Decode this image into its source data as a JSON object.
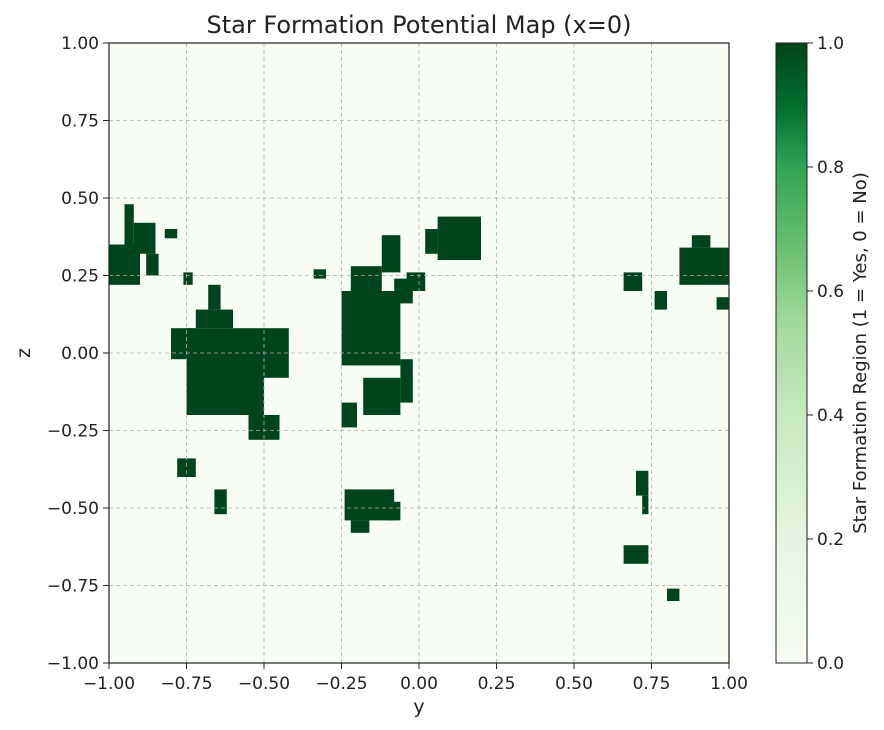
{
  "chart_data": {
    "type": "heatmap",
    "title": "Star Formation Potential Map (x=0)",
    "xlabel": "y",
    "ylabel": "z",
    "xlim": [
      -1.0,
      1.0
    ],
    "ylim": [
      -1.0,
      1.0
    ],
    "x_ticks": [
      "−1.00",
      "−0.75",
      "−0.50",
      "−0.25",
      "0.00",
      "0.25",
      "0.50",
      "0.75",
      "1.00"
    ],
    "y_ticks": [
      "1.00",
      "0.75",
      "0.50",
      "0.25",
      "0.00",
      "−0.25",
      "−0.50",
      "−0.75",
      "−1.00"
    ],
    "grid": true,
    "colorbar": {
      "label": "Star Formation Region (1 = Yes, 0 = No)",
      "ticks": [
        "1.0",
        "0.8",
        "0.6",
        "0.4",
        "0.2",
        "0.0"
      ],
      "range": [
        0.0,
        1.0
      ]
    },
    "colors": {
      "low": "#f7fcf5",
      "mid": "#74c476",
      "high": "#00441b"
    },
    "cell_size": 0.02,
    "regions_value_1": [
      [
        -1.0,
        -0.9,
        0.22,
        0.35
      ],
      [
        -0.95,
        -0.92,
        0.35,
        0.48
      ],
      [
        -0.92,
        -0.85,
        0.32,
        0.42
      ],
      [
        -0.88,
        -0.84,
        0.25,
        0.32
      ],
      [
        -0.82,
        -0.78,
        0.37,
        0.4
      ],
      [
        -0.76,
        -0.73,
        0.22,
        0.26
      ],
      [
        -0.8,
        -0.73,
        -0.02,
        0.08
      ],
      [
        -0.75,
        -0.5,
        -0.2,
        0.08
      ],
      [
        -0.72,
        -0.6,
        0.08,
        0.14
      ],
      [
        -0.68,
        -0.64,
        0.14,
        0.22
      ],
      [
        -0.5,
        -0.42,
        -0.08,
        0.08
      ],
      [
        -0.55,
        -0.45,
        -0.28,
        -0.2
      ],
      [
        -0.78,
        -0.72,
        -0.4,
        -0.34
      ],
      [
        -0.66,
        -0.62,
        -0.52,
        -0.44
      ],
      [
        -0.25,
        -0.06,
        -0.04,
        0.2
      ],
      [
        -0.22,
        -0.12,
        0.2,
        0.28
      ],
      [
        -0.12,
        -0.06,
        0.26,
        0.38
      ],
      [
        -0.08,
        -0.02,
        0.16,
        0.24
      ],
      [
        -0.04,
        0.02,
        0.2,
        0.26
      ],
      [
        0.06,
        0.2,
        0.3,
        0.44
      ],
      [
        0.02,
        0.06,
        0.32,
        0.4
      ],
      [
        -0.18,
        -0.06,
        -0.2,
        -0.08
      ],
      [
        -0.06,
        -0.02,
        -0.16,
        -0.02
      ],
      [
        -0.25,
        -0.2,
        -0.24,
        -0.16
      ],
      [
        -0.24,
        -0.08,
        -0.54,
        -0.44
      ],
      [
        -0.22,
        -0.16,
        -0.58,
        -0.54
      ],
      [
        -0.1,
        -0.06,
        -0.54,
        -0.48
      ],
      [
        0.66,
        0.74,
        -0.68,
        -0.62
      ],
      [
        0.7,
        0.74,
        -0.46,
        -0.38
      ],
      [
        0.72,
        0.74,
        -0.52,
        -0.46
      ],
      [
        0.8,
        0.84,
        -0.8,
        -0.76
      ],
      [
        0.84,
        1.0,
        0.22,
        0.34
      ],
      [
        0.88,
        0.94,
        0.34,
        0.38
      ],
      [
        0.66,
        0.72,
        0.2,
        0.26
      ],
      [
        0.76,
        0.8,
        0.14,
        0.2
      ],
      [
        0.96,
        1.0,
        0.14,
        0.18
      ],
      [
        -0.34,
        -0.3,
        0.24,
        0.27
      ]
    ]
  }
}
